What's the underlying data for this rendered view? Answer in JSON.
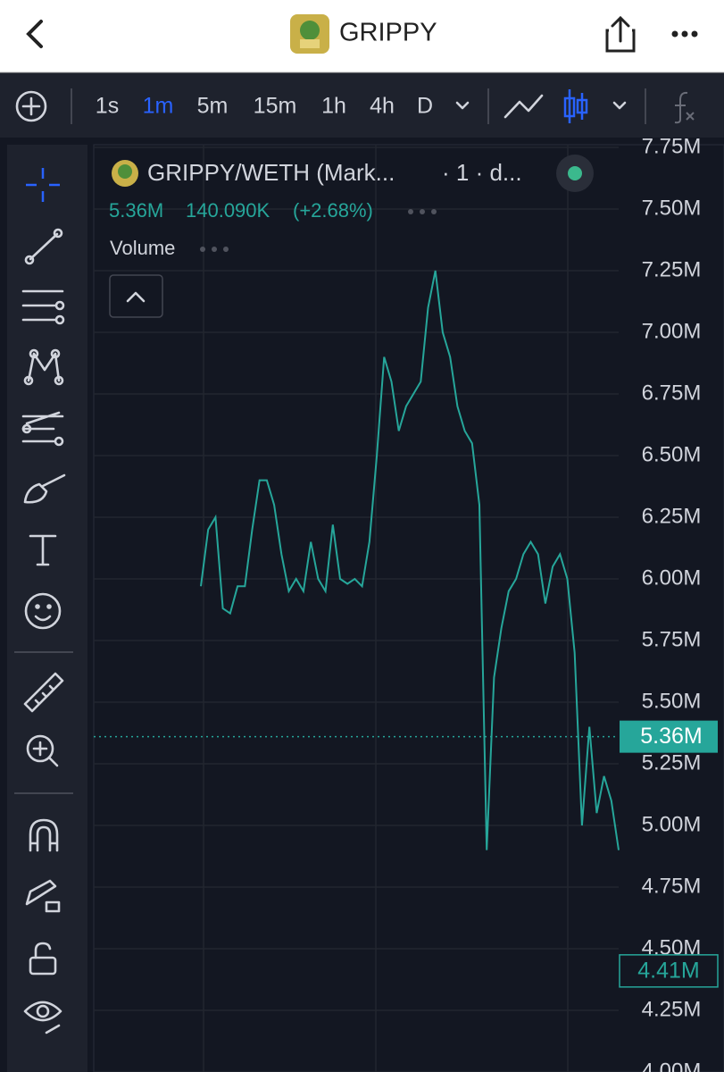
{
  "header": {
    "title": "GRIPPY"
  },
  "toolbar": {
    "intervals": [
      "1s",
      "1m",
      "5m",
      "15m",
      "1h",
      "4h",
      "D"
    ],
    "active_interval": 1
  },
  "legend": {
    "symbol": "GRIPPY/WETH (Mark...",
    "resolution": "· 1 · d...",
    "change": "140.090K",
    "change_percent": "(+2.68%)",
    "study": "Volume"
  },
  "chart_data": {
    "type": "line",
    "color": "#26a69a",
    "values": [
      5.97,
      6.2,
      6.25,
      5.88,
      5.86,
      5.97,
      5.97,
      6.2,
      6.4,
      6.4,
      6.3,
      6.1,
      5.95,
      6.0,
      5.95,
      6.15,
      6.0,
      5.95,
      6.22,
      6.0,
      5.98,
      6.0,
      5.97,
      6.15,
      6.5,
      6.9,
      6.8,
      6.6,
      6.7,
      6.75,
      6.8,
      7.1,
      7.25,
      7.0,
      6.9,
      6.7,
      6.6,
      6.55,
      6.3,
      4.9,
      5.6,
      5.8,
      5.95,
      6.0,
      6.1,
      6.15,
      6.1,
      5.9,
      6.05,
      6.1,
      6.0,
      5.7,
      5.0,
      5.4,
      5.05,
      5.2,
      5.1,
      4.9
    ],
    "ylim": [
      4.0,
      7.75
    ],
    "yticks": [
      {
        "value": 4.0,
        "label": "4.00M"
      },
      {
        "value": 4.25,
        "label": "4.25M"
      },
      {
        "value": 4.5,
        "label": "4.50M"
      },
      {
        "value": 4.75,
        "label": "4.75M"
      },
      {
        "value": 5.0,
        "label": "5.00M"
      },
      {
        "value": 5.25,
        "label": "5.25M"
      },
      {
        "value": 5.5,
        "label": "5.50M"
      },
      {
        "value": 5.75,
        "label": "5.75M"
      },
      {
        "value": 6.0,
        "label": "6.00M"
      },
      {
        "value": 6.25,
        "label": "6.25M"
      },
      {
        "value": 6.5,
        "label": "6.50M"
      },
      {
        "value": 6.75,
        "label": "6.75M"
      },
      {
        "value": 7.0,
        "label": "7.00M"
      },
      {
        "value": 7.25,
        "label": "7.25M"
      },
      {
        "value": 7.5,
        "label": "7.50M"
      },
      {
        "value": 7.75,
        "label": "7.75M"
      }
    ],
    "grid": true,
    "price_lines": [
      {
        "value": 5.36,
        "label": "5.36M",
        "color": "#26a69a"
      },
      {
        "value": 4.41,
        "label": "4.41M",
        "color": "#26a69a"
      }
    ]
  }
}
